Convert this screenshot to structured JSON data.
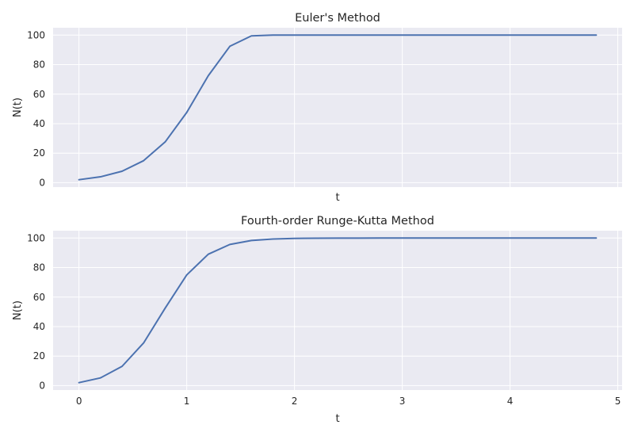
{
  "chart_data": [
    {
      "type": "line",
      "title": "Euler's Method",
      "xlabel": "t",
      "ylabel": "N(t)",
      "xlim": [
        -0.24,
        5.04
      ],
      "ylim": [
        -3,
        105
      ],
      "xticks": [
        0,
        1,
        2,
        3,
        4,
        5
      ],
      "yticks": [
        0,
        20,
        40,
        60,
        80,
        100
      ],
      "show_xtick_labels": false,
      "grid": true,
      "series": [
        {
          "color": "#4c72b0",
          "x": [
            0,
            0.2,
            0.4,
            0.6,
            0.8,
            1.0,
            1.2,
            1.4,
            1.6,
            1.8,
            2.0,
            2.2,
            2.4,
            2.6,
            2.8,
            3.0,
            3.2,
            3.4,
            3.6,
            3.8,
            4.0,
            4.2,
            4.4,
            4.6,
            4.8
          ],
          "y": [
            2.0,
            3.96,
            7.76,
            14.91,
            27.6,
            47.58,
            72.5,
            92.42,
            99.5,
            100.0,
            100.0,
            100.0,
            100.0,
            100.0,
            100.0,
            100.0,
            100.0,
            100.0,
            100.0,
            100.0,
            100.0,
            100.0,
            100.0,
            100.0,
            100.0
          ]
        }
      ]
    },
    {
      "type": "line",
      "title": "Fourth-order Runge-Kutta Method",
      "xlabel": "t",
      "ylabel": "N(t)",
      "xlim": [
        -0.24,
        5.04
      ],
      "ylim": [
        -3,
        105
      ],
      "xticks": [
        0,
        1,
        2,
        3,
        4,
        5
      ],
      "yticks": [
        0,
        20,
        40,
        60,
        80,
        100
      ],
      "show_xtick_labels": true,
      "grid": true,
      "series": [
        {
          "color": "#4c72b0",
          "x": [
            0,
            0.2,
            0.4,
            0.6,
            0.8,
            1.0,
            1.2,
            1.4,
            1.6,
            1.8,
            2.0,
            2.2,
            2.4,
            2.6,
            2.8,
            3.0,
            3.2,
            3.4,
            3.6,
            3.8,
            4.0,
            4.2,
            4.4,
            4.6,
            4.8
          ],
          "y": [
            2.0,
            5.23,
            13.05,
            28.91,
            52.52,
            75.01,
            89.06,
            95.67,
            98.36,
            99.39,
            99.78,
            99.92,
            99.97,
            99.99,
            100.0,
            100.0,
            100.0,
            100.0,
            100.0,
            100.0,
            100.0,
            100.0,
            100.0,
            100.0,
            100.0
          ]
        }
      ]
    }
  ]
}
